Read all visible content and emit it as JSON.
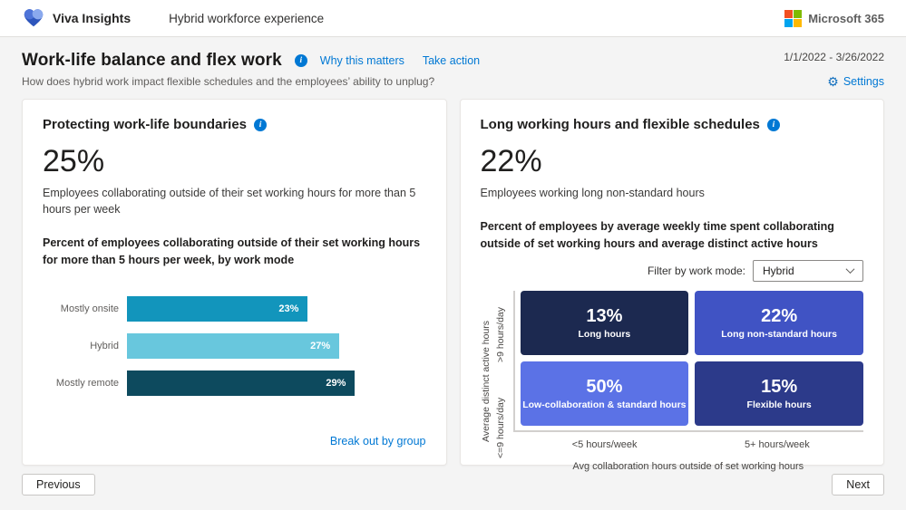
{
  "appbar": {
    "brand": "Viva Insights",
    "app_title": "Hybrid workforce experience",
    "ms_brand": "Microsoft 365"
  },
  "page": {
    "title": "Work-life balance and flex work",
    "why_link": "Why this matters",
    "action_link": "Take action",
    "subtitle": "How does hybrid work impact flexible schedules and the employees’ ability to unplug?",
    "date_range": "1/1/2022 - 3/26/2022",
    "settings_label": "Settings",
    "accent_color": "#0078d4"
  },
  "left_card": {
    "title": "Protecting work-life boundaries",
    "stat": "25%",
    "stat_caption": "Employees collaborating outside of their set working hours for more than 5 hours per week",
    "chart_heading": "Percent of employees collaborating outside of their set working hours for more than 5 hours per week, by work mode",
    "breakout_link": "Break out by group"
  },
  "right_card": {
    "title": "Long working hours and flexible schedules",
    "stat": "22%",
    "stat_caption": "Employees working long non-standard hours",
    "chart_heading": "Percent of employees by average weekly time spent collaborating outside of set working hours and average distinct active hours",
    "filter_label": "Filter by work mode:",
    "filter_value": "Hybrid"
  },
  "footer": {
    "previous": "Previous",
    "next": "Next"
  },
  "chart_data": [
    {
      "type": "bar",
      "orientation": "horizontal",
      "title": "Percent of employees collaborating outside of their set working hours for more than 5 hours per week, by work mode",
      "categories": [
        "Mostly onsite",
        "Hybrid",
        "Mostly remote"
      ],
      "values": [
        23,
        27,
        29
      ],
      "value_labels": [
        "23%",
        "27%",
        "29%"
      ],
      "colors": [
        "#1295bc",
        "#68c7dd",
        "#0d4a5e"
      ],
      "xlim": [
        0,
        38
      ],
      "grid": "off",
      "value_label_position": "inside-end"
    },
    {
      "type": "heatmap",
      "title": "Percent of employees by average weekly time spent collaborating outside of set working hours and average distinct active hours",
      "xlabel": "Avg collaboration hours outside of set working hours",
      "ylabel": "Average distinct active hours",
      "x_categories": [
        "<5 hours/week",
        "5+ hours/week"
      ],
      "y_categories": [
        ">9 hours/day",
        "<=9 hours/day"
      ],
      "cells": [
        {
          "row": ">9 hours/day",
          "col": "<5 hours/week",
          "value": "13%",
          "label": "Long hours",
          "color": "#1c2950"
        },
        {
          "row": ">9 hours/day",
          "col": "5+ hours/week",
          "value": "22%",
          "label": "Long non-standard hours",
          "color": "#4053c4"
        },
        {
          "row": "<=9 hours/day",
          "col": "<5 hours/week",
          "value": "50%",
          "label": "Low-collaboration & standard hours",
          "color": "#5b72e6"
        },
        {
          "row": "<=9 hours/day",
          "col": "5+ hours/week",
          "value": "15%",
          "label": "Flexible hours",
          "color": "#2c3a8a"
        }
      ]
    }
  ]
}
